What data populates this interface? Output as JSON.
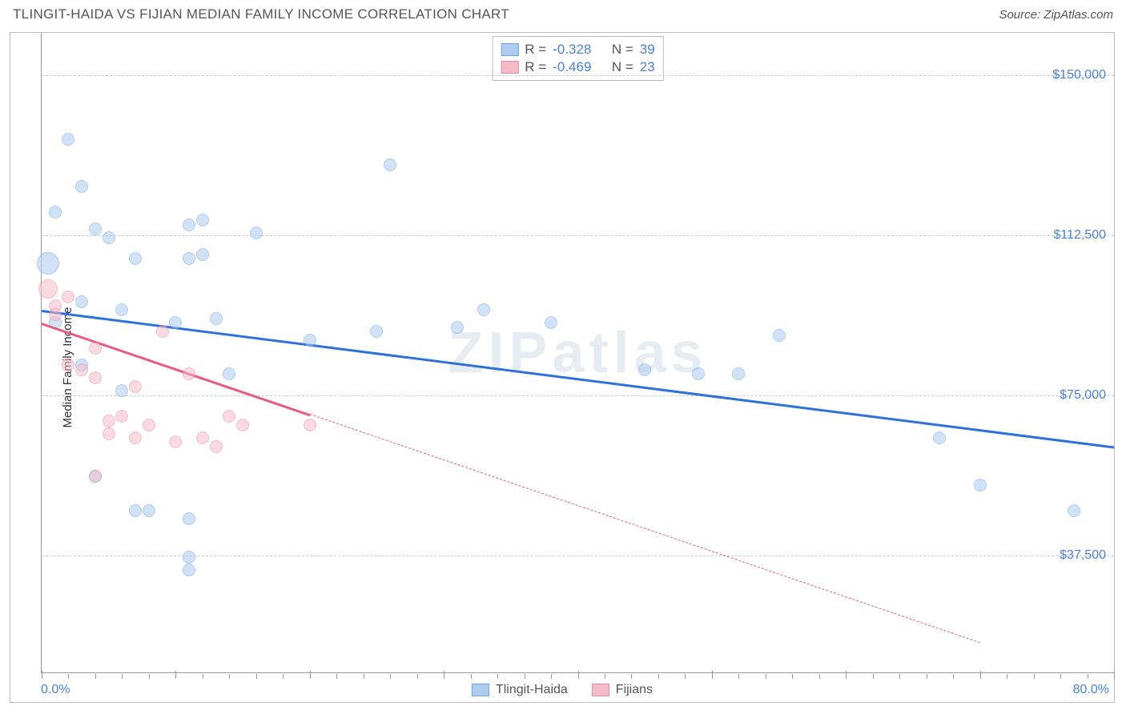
{
  "header": {
    "title": "TLINGIT-HAIDA VS FIJIAN MEDIAN FAMILY INCOME CORRELATION CHART",
    "source": "Source: ZipAtlas.com"
  },
  "chart": {
    "type": "scatter",
    "ylabel": "Median Family Income",
    "watermark": "ZIPatlas",
    "background_color": "#ffffff",
    "grid_color": "#cccccc",
    "axis_color": "#999999",
    "tick_label_color": "#4a7fd6",
    "tick_fontsize": 16,
    "xlim": [
      0,
      80
    ],
    "ylim": [
      10000,
      160000
    ],
    "yticks": [
      {
        "v": 37500,
        "label": "$37,500"
      },
      {
        "v": 75000,
        "label": "$75,000"
      },
      {
        "v": 112500,
        "label": "$112,500"
      },
      {
        "v": 150000,
        "label": "$150,000"
      }
    ],
    "xticks_major": [
      0,
      10,
      20,
      30,
      40,
      50,
      60,
      70,
      80
    ],
    "xticks_minor_step": 2,
    "x_axis_labels": {
      "left": "0.0%",
      "right": "80.0%"
    },
    "series": [
      {
        "name": "Tlingit-Haida",
        "fill": "#aeccf0",
        "stroke": "#6ea3e0",
        "fill_opacity": 0.55,
        "marker_r": 8,
        "line_color": "#2d72d9",
        "line_width": 2.5,
        "trend": {
          "x1": 0,
          "y1": 95000,
          "x2": 80,
          "y2": 63000,
          "dash_from_x": 80
        },
        "stats": {
          "R": "-0.328",
          "N": "39"
        },
        "points": [
          {
            "x": 2,
            "y": 135000
          },
          {
            "x": 3,
            "y": 124000
          },
          {
            "x": 1,
            "y": 118000
          },
          {
            "x": 0.5,
            "y": 106000,
            "r": 14
          },
          {
            "x": 5,
            "y": 112000
          },
          {
            "x": 4,
            "y": 114000
          },
          {
            "x": 11,
            "y": 115000
          },
          {
            "x": 12,
            "y": 116000
          },
          {
            "x": 7,
            "y": 107000
          },
          {
            "x": 11,
            "y": 107000
          },
          {
            "x": 12,
            "y": 108000
          },
          {
            "x": 16,
            "y": 113000
          },
          {
            "x": 26,
            "y": 129000
          },
          {
            "x": 3,
            "y": 97000
          },
          {
            "x": 6,
            "y": 95000
          },
          {
            "x": 10,
            "y": 92000
          },
          {
            "x": 13,
            "y": 93000
          },
          {
            "x": 20,
            "y": 88000
          },
          {
            "x": 25,
            "y": 90000
          },
          {
            "x": 31,
            "y": 91000
          },
          {
            "x": 33,
            "y": 95000
          },
          {
            "x": 38,
            "y": 92000
          },
          {
            "x": 45,
            "y": 81000
          },
          {
            "x": 49,
            "y": 80000
          },
          {
            "x": 52,
            "y": 80000
          },
          {
            "x": 55,
            "y": 89000
          },
          {
            "x": 3,
            "y": 82000
          },
          {
            "x": 6,
            "y": 76000
          },
          {
            "x": 4,
            "y": 56000
          },
          {
            "x": 7,
            "y": 48000
          },
          {
            "x": 8,
            "y": 48000
          },
          {
            "x": 11,
            "y": 46000
          },
          {
            "x": 11,
            "y": 37000
          },
          {
            "x": 11,
            "y": 34000
          },
          {
            "x": 67,
            "y": 65000
          },
          {
            "x": 70,
            "y": 54000
          },
          {
            "x": 77,
            "y": 48000
          },
          {
            "x": 1,
            "y": 92000
          },
          {
            "x": 14,
            "y": 80000
          }
        ]
      },
      {
        "name": "Fijians",
        "fill": "#f3bcc8",
        "stroke": "#e78aa2",
        "fill_opacity": 0.55,
        "marker_r": 8,
        "line_color": "#e55b82",
        "line_width": 2.5,
        "trend": {
          "x1": 0,
          "y1": 92000,
          "x2": 70,
          "y2": 17000,
          "dash_from_x": 20
        },
        "stats": {
          "R": "-0.469",
          "N": "23"
        },
        "points": [
          {
            "x": 0.5,
            "y": 100000,
            "r": 12
          },
          {
            "x": 1,
            "y": 96000
          },
          {
            "x": 1,
            "y": 94000
          },
          {
            "x": 2,
            "y": 98000
          },
          {
            "x": 2,
            "y": 82000
          },
          {
            "x": 3,
            "y": 81000
          },
          {
            "x": 4,
            "y": 86000
          },
          {
            "x": 4,
            "y": 79000
          },
          {
            "x": 5,
            "y": 69000
          },
          {
            "x": 5,
            "y": 66000
          },
          {
            "x": 6,
            "y": 70000
          },
          {
            "x": 7,
            "y": 77000
          },
          {
            "x": 7,
            "y": 65000
          },
          {
            "x": 8,
            "y": 68000
          },
          {
            "x": 9,
            "y": 90000
          },
          {
            "x": 10,
            "y": 64000
          },
          {
            "x": 11,
            "y": 80000
          },
          {
            "x": 12,
            "y": 65000
          },
          {
            "x": 13,
            "y": 63000
          },
          {
            "x": 14,
            "y": 70000
          },
          {
            "x": 15,
            "y": 68000
          },
          {
            "x": 20,
            "y": 68000
          },
          {
            "x": 4,
            "y": 56000
          }
        ]
      }
    ]
  }
}
